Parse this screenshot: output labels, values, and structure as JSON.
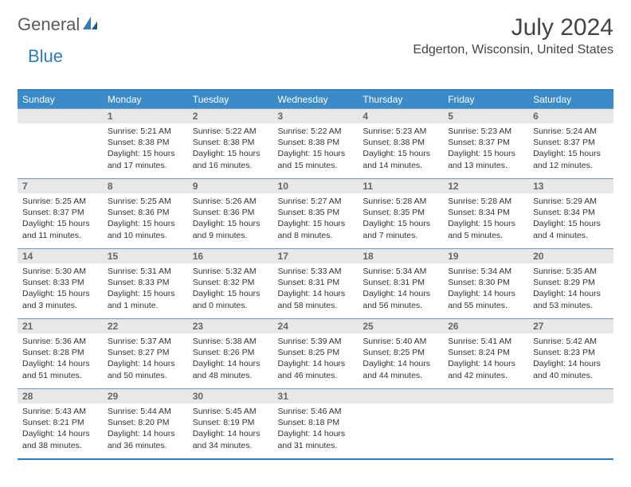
{
  "logo": {
    "part1": "General",
    "part2": "Blue"
  },
  "title": "July 2024",
  "location": "Edgerton, Wisconsin, United States",
  "colors": {
    "header_bg": "#3b8bc9",
    "border": "#2d7dc0",
    "daynum_bg": "#e8e8e8",
    "logo_gray": "#5a5a5a",
    "logo_blue": "#2d7dc0"
  },
  "weekdays": [
    "Sunday",
    "Monday",
    "Tuesday",
    "Wednesday",
    "Thursday",
    "Friday",
    "Saturday"
  ],
  "weeks": [
    [
      {
        "day": "",
        "sunrise": "",
        "sunset": "",
        "daylight": ""
      },
      {
        "day": "1",
        "sunrise": "Sunrise: 5:21 AM",
        "sunset": "Sunset: 8:38 PM",
        "daylight": "Daylight: 15 hours and 17 minutes."
      },
      {
        "day": "2",
        "sunrise": "Sunrise: 5:22 AM",
        "sunset": "Sunset: 8:38 PM",
        "daylight": "Daylight: 15 hours and 16 minutes."
      },
      {
        "day": "3",
        "sunrise": "Sunrise: 5:22 AM",
        "sunset": "Sunset: 8:38 PM",
        "daylight": "Daylight: 15 hours and 15 minutes."
      },
      {
        "day": "4",
        "sunrise": "Sunrise: 5:23 AM",
        "sunset": "Sunset: 8:38 PM",
        "daylight": "Daylight: 15 hours and 14 minutes."
      },
      {
        "day": "5",
        "sunrise": "Sunrise: 5:23 AM",
        "sunset": "Sunset: 8:37 PM",
        "daylight": "Daylight: 15 hours and 13 minutes."
      },
      {
        "day": "6",
        "sunrise": "Sunrise: 5:24 AM",
        "sunset": "Sunset: 8:37 PM",
        "daylight": "Daylight: 15 hours and 12 minutes."
      }
    ],
    [
      {
        "day": "7",
        "sunrise": "Sunrise: 5:25 AM",
        "sunset": "Sunset: 8:37 PM",
        "daylight": "Daylight: 15 hours and 11 minutes."
      },
      {
        "day": "8",
        "sunrise": "Sunrise: 5:25 AM",
        "sunset": "Sunset: 8:36 PM",
        "daylight": "Daylight: 15 hours and 10 minutes."
      },
      {
        "day": "9",
        "sunrise": "Sunrise: 5:26 AM",
        "sunset": "Sunset: 8:36 PM",
        "daylight": "Daylight: 15 hours and 9 minutes."
      },
      {
        "day": "10",
        "sunrise": "Sunrise: 5:27 AM",
        "sunset": "Sunset: 8:35 PM",
        "daylight": "Daylight: 15 hours and 8 minutes."
      },
      {
        "day": "11",
        "sunrise": "Sunrise: 5:28 AM",
        "sunset": "Sunset: 8:35 PM",
        "daylight": "Daylight: 15 hours and 7 minutes."
      },
      {
        "day": "12",
        "sunrise": "Sunrise: 5:28 AM",
        "sunset": "Sunset: 8:34 PM",
        "daylight": "Daylight: 15 hours and 5 minutes."
      },
      {
        "day": "13",
        "sunrise": "Sunrise: 5:29 AM",
        "sunset": "Sunset: 8:34 PM",
        "daylight": "Daylight: 15 hours and 4 minutes."
      }
    ],
    [
      {
        "day": "14",
        "sunrise": "Sunrise: 5:30 AM",
        "sunset": "Sunset: 8:33 PM",
        "daylight": "Daylight: 15 hours and 3 minutes."
      },
      {
        "day": "15",
        "sunrise": "Sunrise: 5:31 AM",
        "sunset": "Sunset: 8:33 PM",
        "daylight": "Daylight: 15 hours and 1 minute."
      },
      {
        "day": "16",
        "sunrise": "Sunrise: 5:32 AM",
        "sunset": "Sunset: 8:32 PM",
        "daylight": "Daylight: 15 hours and 0 minutes."
      },
      {
        "day": "17",
        "sunrise": "Sunrise: 5:33 AM",
        "sunset": "Sunset: 8:31 PM",
        "daylight": "Daylight: 14 hours and 58 minutes."
      },
      {
        "day": "18",
        "sunrise": "Sunrise: 5:34 AM",
        "sunset": "Sunset: 8:31 PM",
        "daylight": "Daylight: 14 hours and 56 minutes."
      },
      {
        "day": "19",
        "sunrise": "Sunrise: 5:34 AM",
        "sunset": "Sunset: 8:30 PM",
        "daylight": "Daylight: 14 hours and 55 minutes."
      },
      {
        "day": "20",
        "sunrise": "Sunrise: 5:35 AM",
        "sunset": "Sunset: 8:29 PM",
        "daylight": "Daylight: 14 hours and 53 minutes."
      }
    ],
    [
      {
        "day": "21",
        "sunrise": "Sunrise: 5:36 AM",
        "sunset": "Sunset: 8:28 PM",
        "daylight": "Daylight: 14 hours and 51 minutes."
      },
      {
        "day": "22",
        "sunrise": "Sunrise: 5:37 AM",
        "sunset": "Sunset: 8:27 PM",
        "daylight": "Daylight: 14 hours and 50 minutes."
      },
      {
        "day": "23",
        "sunrise": "Sunrise: 5:38 AM",
        "sunset": "Sunset: 8:26 PM",
        "daylight": "Daylight: 14 hours and 48 minutes."
      },
      {
        "day": "24",
        "sunrise": "Sunrise: 5:39 AM",
        "sunset": "Sunset: 8:25 PM",
        "daylight": "Daylight: 14 hours and 46 minutes."
      },
      {
        "day": "25",
        "sunrise": "Sunrise: 5:40 AM",
        "sunset": "Sunset: 8:25 PM",
        "daylight": "Daylight: 14 hours and 44 minutes."
      },
      {
        "day": "26",
        "sunrise": "Sunrise: 5:41 AM",
        "sunset": "Sunset: 8:24 PM",
        "daylight": "Daylight: 14 hours and 42 minutes."
      },
      {
        "day": "27",
        "sunrise": "Sunrise: 5:42 AM",
        "sunset": "Sunset: 8:23 PM",
        "daylight": "Daylight: 14 hours and 40 minutes."
      }
    ],
    [
      {
        "day": "28",
        "sunrise": "Sunrise: 5:43 AM",
        "sunset": "Sunset: 8:21 PM",
        "daylight": "Daylight: 14 hours and 38 minutes."
      },
      {
        "day": "29",
        "sunrise": "Sunrise: 5:44 AM",
        "sunset": "Sunset: 8:20 PM",
        "daylight": "Daylight: 14 hours and 36 minutes."
      },
      {
        "day": "30",
        "sunrise": "Sunrise: 5:45 AM",
        "sunset": "Sunset: 8:19 PM",
        "daylight": "Daylight: 14 hours and 34 minutes."
      },
      {
        "day": "31",
        "sunrise": "Sunrise: 5:46 AM",
        "sunset": "Sunset: 8:18 PM",
        "daylight": "Daylight: 14 hours and 31 minutes."
      },
      {
        "day": "",
        "sunrise": "",
        "sunset": "",
        "daylight": ""
      },
      {
        "day": "",
        "sunrise": "",
        "sunset": "",
        "daylight": ""
      },
      {
        "day": "",
        "sunrise": "",
        "sunset": "",
        "daylight": ""
      }
    ]
  ]
}
